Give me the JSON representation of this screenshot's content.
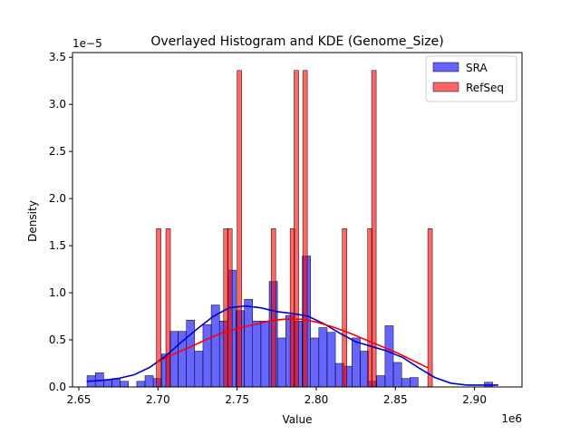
{
  "chart_data": {
    "type": "histogram",
    "title": "Overlayed Histogram and KDE (Genome_Size)",
    "xlabel": "Value",
    "ylabel": "Density",
    "x_offset_label": "1e6",
    "y_offset_label": "1e−5",
    "xlim": [
      2.646,
      2.93
    ],
    "ylim": [
      0,
      3.55
    ],
    "x_ticks": [
      2.65,
      2.7,
      2.75,
      2.8,
      2.85,
      2.9
    ],
    "x_tick_labels": [
      "2.65",
      "2.70",
      "2.75",
      "2.80",
      "2.85",
      "2.90"
    ],
    "y_ticks": [
      0,
      0.5,
      1.0,
      1.5,
      2.0,
      2.5,
      3.0,
      3.5
    ],
    "y_tick_labels": [
      "0.0",
      "0.5",
      "1.0",
      "1.5",
      "2.0",
      "2.5",
      "3.0",
      "3.5"
    ],
    "legend_position": "top-right",
    "series": [
      {
        "name": "SRA",
        "color": "#0000ff",
        "bin_width": 0.00523,
        "bin_start": 2.6552,
        "values": [
          0.12,
          0.15,
          0.08,
          0.09,
          0.06,
          0.0,
          0.06,
          0.12,
          0.09,
          0.35,
          0.59,
          0.59,
          0.71,
          0.38,
          0.66,
          0.87,
          0.7,
          1.24,
          0.81,
          0.93,
          0.7,
          0.7,
          1.12,
          0.52,
          0.76,
          0.7,
          1.39,
          0.52,
          0.63,
          0.58,
          0.25,
          0.22,
          0.52,
          0.38,
          0.06,
          0.12,
          0.65,
          0.26,
          0.09,
          0.1,
          0.0,
          0.0,
          0.0,
          0.0,
          0.0,
          0.0,
          0.0,
          0.0,
          0.05
        ],
        "kde": {
          "x": [
            2.655,
            2.665,
            2.675,
            2.685,
            2.695,
            2.705,
            2.715,
            2.725,
            2.735,
            2.745,
            2.755,
            2.765,
            2.775,
            2.785,
            2.795,
            2.805,
            2.815,
            2.825,
            2.835,
            2.845,
            2.855,
            2.865,
            2.875,
            2.885,
            2.895,
            2.905,
            2.915
          ],
          "y": [
            0.06,
            0.07,
            0.09,
            0.13,
            0.21,
            0.33,
            0.48,
            0.62,
            0.75,
            0.84,
            0.86,
            0.84,
            0.8,
            0.78,
            0.75,
            0.67,
            0.57,
            0.48,
            0.43,
            0.38,
            0.31,
            0.2,
            0.1,
            0.04,
            0.02,
            0.02,
            0.02
          ]
        }
      },
      {
        "name": "RefSeq",
        "color": "#ff0000",
        "bin_width": 0.00287,
        "bars": [
          [
            2.699,
            1.68
          ],
          [
            2.705,
            1.68
          ],
          [
            2.7415,
            1.68
          ],
          [
            2.744,
            1.68
          ],
          [
            2.75,
            3.36
          ],
          [
            2.7715,
            1.68
          ],
          [
            2.7835,
            1.68
          ],
          [
            2.786,
            3.36
          ],
          [
            2.7915,
            3.36
          ],
          [
            2.8165,
            1.68
          ],
          [
            2.8325,
            1.68
          ],
          [
            2.835,
            3.36
          ],
          [
            2.8705,
            1.68
          ]
        ],
        "kde": {
          "x": [
            2.699,
            2.71,
            2.72,
            2.73,
            2.74,
            2.75,
            2.76,
            2.77,
            2.78,
            2.79,
            2.8,
            2.81,
            2.82,
            2.83,
            2.84,
            2.85,
            2.86,
            2.871
          ],
          "y": [
            0.26,
            0.35,
            0.42,
            0.5,
            0.57,
            0.62,
            0.66,
            0.7,
            0.72,
            0.72,
            0.69,
            0.64,
            0.58,
            0.51,
            0.44,
            0.37,
            0.29,
            0.2
          ]
        }
      }
    ]
  }
}
